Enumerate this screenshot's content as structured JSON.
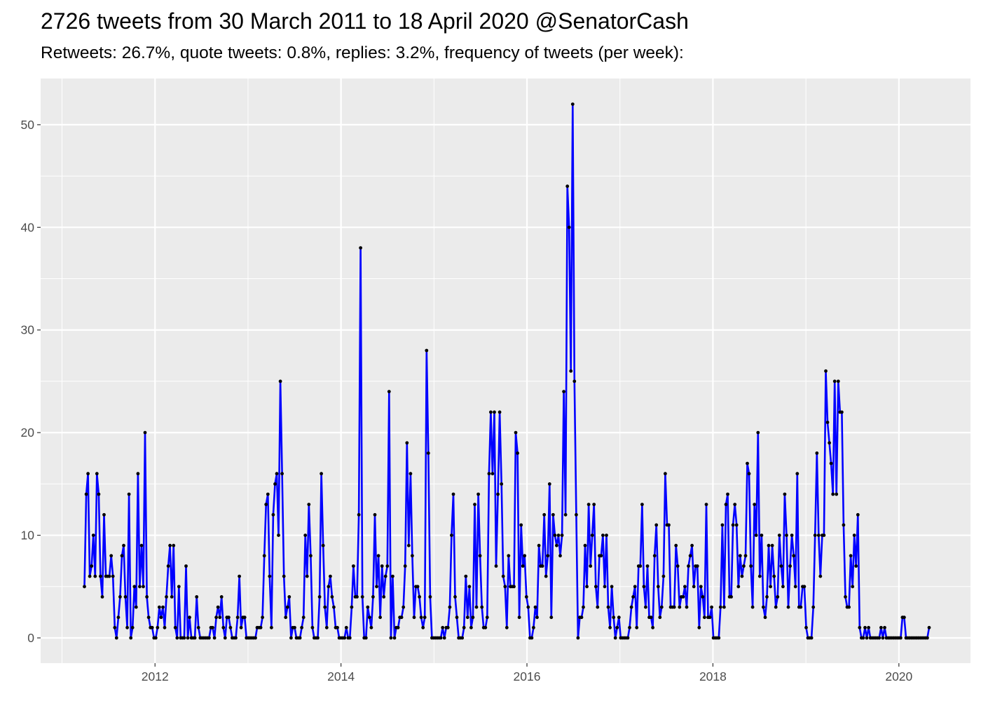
{
  "chart_data": {
    "type": "line",
    "title": "2726 tweets from 30 March 2011 to 18 April 2020 @SenatorCash",
    "subtitle": "Retweets: 26.7%, quote tweets: 0.8%, replies: 3.2%, frequency of tweets (per week):",
    "xlabel": "",
    "ylabel": "",
    "x_start": "2011-03-30",
    "x_frequency": "weekly",
    "xlim": [
      2010.77,
      2020.77
    ],
    "ylim": [
      -2.46,
      54.5
    ],
    "xticks": [
      "2012",
      "2014",
      "2016",
      "2018",
      "2020"
    ],
    "yticks": [
      0,
      10,
      20,
      30,
      40,
      50
    ],
    "grid": true,
    "markers": true,
    "colors": {
      "line": "#0000FF",
      "points": "#000000",
      "panel": "#EBEBEB",
      "grid": "#FFFFFF"
    },
    "values": [
      5,
      14,
      16,
      6,
      7,
      10,
      6,
      16,
      14,
      6,
      4,
      12,
      6,
      6,
      6,
      8,
      6,
      1,
      0,
      2,
      4,
      8,
      9,
      4,
      1,
      14,
      0,
      1,
      5,
      3,
      16,
      5,
      9,
      5,
      20,
      4,
      2,
      1,
      1,
      0,
      0,
      1,
      3,
      2,
      3,
      1,
      4,
      7,
      9,
      4,
      9,
      1,
      0,
      5,
      0,
      0,
      0,
      7,
      0,
      2,
      0,
      0,
      0,
      4,
      1,
      0,
      0,
      0,
      0,
      0,
      0,
      1,
      1,
      0,
      2,
      3,
      2,
      4,
      1,
      0,
      2,
      2,
      1,
      0,
      0,
      0,
      2,
      6,
      1,
      2,
      2,
      0,
      0,
      0,
      0,
      0,
      0,
      1,
      1,
      1,
      2,
      8,
      13,
      14,
      6,
      1,
      12,
      15,
      16,
      10,
      25,
      16,
      6,
      2,
      3,
      4,
      0,
      1,
      1,
      0,
      0,
      0,
      1,
      2,
      10,
      6,
      13,
      8,
      1,
      0,
      0,
      0,
      4,
      16,
      9,
      3,
      1,
      5,
      6,
      4,
      3,
      1,
      1,
      0,
      0,
      0,
      0,
      1,
      0,
      0,
      3,
      7,
      4,
      4,
      12,
      38,
      4,
      0,
      0,
      3,
      2,
      1,
      4,
      12,
      5,
      8,
      2,
      7,
      4,
      6,
      7,
      24,
      0,
      6,
      0,
      1,
      1,
      2,
      2,
      3,
      7,
      19,
      9,
      16,
      8,
      2,
      5,
      5,
      4,
      2,
      1,
      2,
      28,
      18,
      4,
      0,
      0,
      0,
      0,
      0,
      0,
      1,
      0,
      1,
      1,
      3,
      10,
      14,
      4,
      2,
      0,
      0,
      0,
      1,
      6,
      2,
      5,
      1,
      2,
      13,
      3,
      14,
      8,
      3,
      1,
      1,
      2,
      16,
      22,
      16,
      22,
      7,
      14,
      22,
      15,
      6,
      5,
      1,
      8,
      5,
      5,
      5,
      20,
      18,
      2,
      11,
      7,
      8,
      4,
      3,
      0,
      0,
      1,
      3,
      2,
      9,
      7,
      7,
      12,
      6,
      8,
      15,
      2,
      12,
      10,
      9,
      10,
      8,
      10,
      24,
      12,
      44,
      40,
      26,
      52,
      25,
      12,
      0,
      2,
      2,
      3,
      9,
      5,
      13,
      7,
      10,
      13,
      5,
      3,
      8,
      8,
      10,
      5,
      10,
      3,
      1,
      5,
      2,
      0,
      1,
      2,
      0,
      0,
      0,
      0,
      0,
      1,
      3,
      4,
      5,
      1,
      7,
      7,
      13,
      5,
      3,
      7,
      2,
      2,
      1,
      8,
      11,
      5,
      2,
      3,
      6,
      16,
      11,
      11,
      3,
      3,
      3,
      9,
      7,
      3,
      4,
      4,
      5,
      3,
      7,
      8,
      9,
      5,
      7,
      7,
      1,
      5,
      4,
      2,
      13,
      2,
      2,
      3,
      0,
      0,
      0,
      0,
      3,
      11,
      3,
      13,
      14,
      4,
      4,
      11,
      13,
      11,
      5,
      8,
      6,
      7,
      8,
      17,
      16,
      7,
      3,
      13,
      10,
      20,
      6,
      10,
      3,
      2,
      4,
      9,
      5,
      9,
      6,
      3,
      4,
      10,
      7,
      5,
      14,
      10,
      3,
      7,
      10,
      8,
      5,
      16,
      3,
      3,
      5,
      5,
      1,
      0,
      0,
      0,
      3,
      10,
      18,
      10,
      6,
      10,
      10,
      26,
      21,
      19,
      17,
      14,
      25,
      14,
      25,
      22,
      22,
      11,
      4,
      3,
      3,
      8,
      5,
      10,
      7,
      12,
      1,
      0,
      0,
      1,
      0,
      1,
      0,
      0,
      0,
      0,
      0,
      0,
      1,
      0,
      1,
      0,
      0,
      0,
      0,
      0,
      0,
      0,
      0,
      0,
      2,
      2,
      0,
      0,
      0,
      0,
      0,
      0,
      0,
      0,
      0,
      0,
      0,
      0,
      0,
      1
    ]
  }
}
